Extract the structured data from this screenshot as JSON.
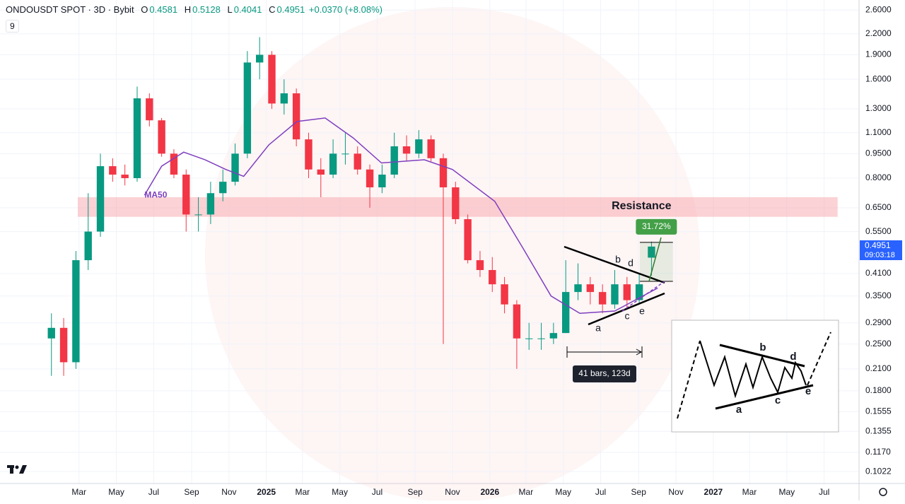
{
  "header": {
    "title": "ONDOUSDT SPOT · 3D · Bybit",
    "keys": [
      "O",
      "H",
      "L",
      "C"
    ],
    "open": 0.4581,
    "high": 0.5128,
    "low": 0.4041,
    "close": 0.4951,
    "change": "+0.0370 (+8.08%)",
    "indicators": 9,
    "countdown": "09:03:18"
  },
  "annotations": {
    "wave_labels": [
      "a",
      "b",
      "c",
      "d",
      "e"
    ],
    "range_label": "41 bars, 123d"
  },
  "chart_data": {
    "type": "candlestick",
    "log_scale": true,
    "grid": true,
    "up_color": "#089981",
    "down_color": "#f23645",
    "x": [
      15,
      35,
      55,
      75,
      95,
      115,
      135,
      155,
      175,
      195,
      215,
      235,
      255,
      275,
      295,
      315,
      335,
      355,
      375,
      395,
      415,
      435,
      455,
      475,
      495,
      515,
      535,
      555,
      575,
      595,
      615,
      635,
      655,
      675,
      695,
      715,
      735,
      755,
      775,
      795,
      815,
      835,
      855,
      875,
      895,
      915,
      935,
      955,
      975,
      995
    ],
    "open": [
      0.26,
      0.28,
      0.22,
      0.45,
      0.55,
      0.87,
      0.82,
      0.8,
      1.4,
      1.2,
      0.95,
      0.82,
      0.62,
      0.62,
      0.72,
      0.78,
      0.95,
      1.8,
      1.9,
      1.35,
      1.45,
      1.05,
      0.85,
      0.82,
      0.95,
      0.95,
      0.85,
      0.75,
      0.82,
      1.0,
      0.95,
      1.05,
      0.92,
      0.75,
      0.6,
      0.45,
      0.42,
      0.38,
      0.33,
      0.26,
      0.26,
      0.26,
      0.27,
      0.36,
      0.38,
      0.36,
      0.33,
      0.38,
      0.34,
      0.4581
    ],
    "high": [
      0.31,
      0.3,
      0.48,
      0.72,
      0.95,
      0.92,
      0.88,
      1.52,
      1.45,
      1.22,
      0.98,
      0.85,
      0.7,
      0.78,
      0.85,
      1.02,
      1.95,
      2.15,
      1.95,
      1.6,
      1.5,
      1.1,
      0.92,
      1.05,
      1.1,
      1.0,
      0.88,
      0.88,
      1.1,
      1.08,
      1.12,
      1.08,
      0.95,
      0.78,
      0.62,
      0.48,
      0.46,
      0.4,
      0.34,
      0.29,
      0.29,
      0.29,
      0.45,
      0.44,
      0.4,
      0.38,
      0.42,
      0.4,
      0.41,
      0.5128
    ],
    "low": [
      0.2,
      0.2,
      0.21,
      0.42,
      0.53,
      0.78,
      0.76,
      0.78,
      1.15,
      0.93,
      0.8,
      0.55,
      0.55,
      0.58,
      0.68,
      0.76,
      0.92,
      1.6,
      1.3,
      1.25,
      1.0,
      0.8,
      0.7,
      0.8,
      0.88,
      0.82,
      0.65,
      0.72,
      0.8,
      0.9,
      0.92,
      0.9,
      0.25,
      0.58,
      0.44,
      0.4,
      0.36,
      0.31,
      0.21,
      0.24,
      0.24,
      0.25,
      0.27,
      0.34,
      0.33,
      0.31,
      0.32,
      0.32,
      0.33,
      0.4041
    ],
    "close": [
      0.28,
      0.22,
      0.45,
      0.55,
      0.87,
      0.82,
      0.8,
      1.4,
      1.2,
      0.95,
      0.82,
      0.62,
      0.62,
      0.72,
      0.78,
      0.95,
      1.8,
      1.9,
      1.35,
      1.45,
      1.05,
      0.85,
      0.82,
      0.95,
      0.95,
      0.85,
      0.75,
      0.82,
      1.0,
      0.95,
      1.05,
      0.92,
      0.75,
      0.6,
      0.45,
      0.42,
      0.38,
      0.33,
      0.26,
      0.26,
      0.26,
      0.27,
      0.36,
      0.38,
      0.36,
      0.33,
      0.38,
      0.34,
      0.38,
      0.4951
    ],
    "series": [
      {
        "name": "MA50",
        "color": "#7e3fbf",
        "x": [
          167,
          195,
          231,
          266,
          300,
          329,
          370,
          416,
          462,
          508,
          554,
          624,
          670,
          739,
          785,
          831,
          878,
          935,
          1005
        ],
        "values": [
          0.71,
          0.87,
          0.96,
          0.91,
          0.85,
          0.81,
          1.01,
          1.19,
          1.22,
          1.06,
          0.89,
          0.91,
          0.85,
          0.68,
          0.49,
          0.35,
          0.31,
          0.315,
          0.37
        ]
      }
    ],
    "resistance": {
      "label": "Resistance",
      "low": 0.61,
      "high": 0.7,
      "start": 58,
      "end": 1299,
      "color": "#f7a6ab"
    },
    "measure": {
      "label": "31.72%",
      "low": 0.388,
      "high": 0.51,
      "start": 976,
      "end": 1030,
      "color": "#43a047"
    },
    "xlim": [
      -69,
      1334
    ],
    "ylim": [
      0.094,
      2.79
    ],
    "xticks": [
      {
        "value": 60,
        "label": "Mar"
      },
      {
        "value": 121,
        "label": "May"
      },
      {
        "value": 182,
        "label": "Jul"
      },
      {
        "value": 244,
        "label": "Sep"
      },
      {
        "value": 305,
        "label": "Nov"
      },
      {
        "value": 366,
        "label": "2025"
      },
      {
        "value": 425,
        "label": "Mar"
      },
      {
        "value": 486,
        "label": "May"
      },
      {
        "value": 547,
        "label": "Jul"
      },
      {
        "value": 609,
        "label": "Sep"
      },
      {
        "value": 670,
        "label": "Nov"
      },
      {
        "value": 731,
        "label": "2026"
      },
      {
        "value": 790,
        "label": "Mar"
      },
      {
        "value": 851,
        "label": "May"
      },
      {
        "value": 912,
        "label": "Jul"
      },
      {
        "value": 974,
        "label": "Sep"
      },
      {
        "value": 1035,
        "label": "Nov"
      },
      {
        "value": 1096,
        "label": "2027"
      },
      {
        "value": 1155,
        "label": "Mar"
      },
      {
        "value": 1216,
        "label": "May"
      },
      {
        "value": 1277,
        "label": "Jul"
      }
    ],
    "yticks": [
      {
        "value": 2.6,
        "label": "2.6000"
      },
      {
        "value": 2.2,
        "label": "2.2000"
      },
      {
        "value": 1.9,
        "label": "1.9000"
      },
      {
        "value": 1.6,
        "label": "1.6000"
      },
      {
        "value": 1.3,
        "label": "1.3000"
      },
      {
        "value": 1.1,
        "label": "1.1000"
      },
      {
        "value": 0.95,
        "label": "0.9500"
      },
      {
        "value": 0.8,
        "label": "0.8000"
      },
      {
        "value": 0.65,
        "label": "0.6500"
      },
      {
        "value": 0.55,
        "label": "0.5500"
      },
      {
        "value": 0.41,
        "label": "0.4100"
      },
      {
        "value": 0.35,
        "label": "0.3500"
      },
      {
        "value": 0.29,
        "label": "0.2900"
      },
      {
        "value": 0.25,
        "label": "0.2500"
      },
      {
        "value": 0.21,
        "label": "0.2100"
      },
      {
        "value": 0.18,
        "label": "0.1800"
      },
      {
        "value": 0.1555,
        "label": "0.1555"
      },
      {
        "value": 0.1355,
        "label": "0.1355"
      },
      {
        "value": 0.117,
        "label": "0.1170"
      },
      {
        "value": 0.1022,
        "label": "0.1022"
      }
    ]
  }
}
